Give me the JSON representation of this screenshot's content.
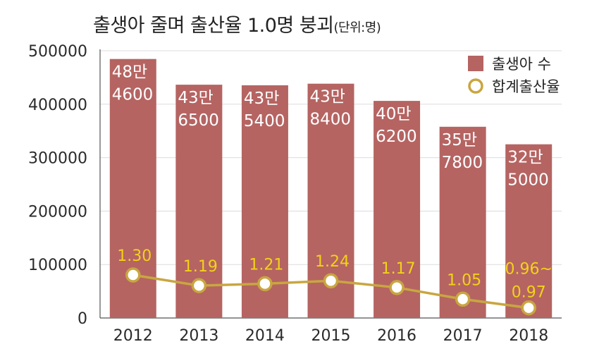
{
  "chart_data": {
    "type": "bar",
    "title": "출생아 줄며 출산율 1.0명 붕괴",
    "unit_note": "(단위:명)",
    "categories": [
      "2012",
      "2013",
      "2014",
      "2015",
      "2016",
      "2017",
      "2018"
    ],
    "ylim": [
      0,
      500000
    ],
    "yticks": [
      "500000",
      "400000",
      "300000",
      "200000",
      "100000",
      "0"
    ],
    "grid": true,
    "legend_position": "top-right",
    "series": [
      {
        "name": "출생아 수",
        "kind": "bar",
        "color": "#b56462",
        "values": [
          484600,
          436500,
          435400,
          438400,
          406200,
          357800,
          325000
        ],
        "labels": [
          [
            "48만",
            "4600"
          ],
          [
            "43만",
            "6500"
          ],
          [
            "43만",
            "5400"
          ],
          [
            "43만",
            "8400"
          ],
          [
            "40만",
            "6200"
          ],
          [
            "35만",
            "7800"
          ],
          [
            "32만",
            "5000"
          ]
        ]
      },
      {
        "name": "합계출산율",
        "kind": "line",
        "color": "#c9a640",
        "label_color": "#f2d218",
        "values": [
          1.3,
          1.19,
          1.21,
          1.24,
          1.17,
          1.05,
          0.96
        ],
        "labels": [
          [
            "1.30"
          ],
          [
            "1.19"
          ],
          [
            "1.21"
          ],
          [
            "1.24"
          ],
          [
            "1.17"
          ],
          [
            "1.05"
          ],
          [
            "0.96~",
            "0.97"
          ]
        ]
      }
    ]
  }
}
